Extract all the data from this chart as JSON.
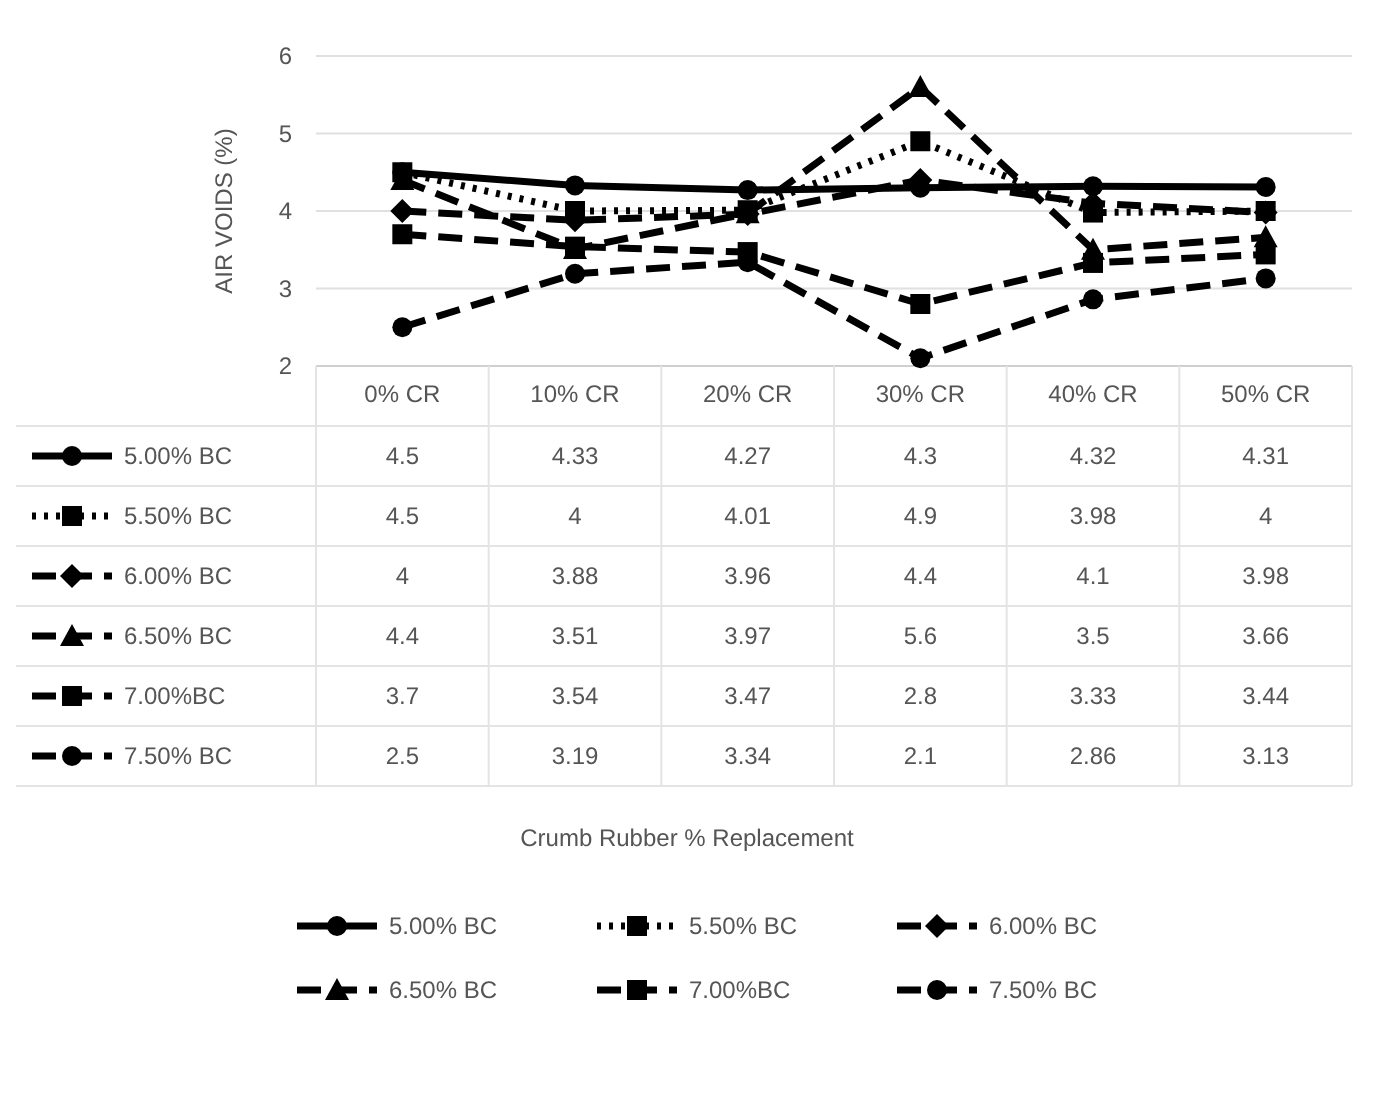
{
  "chart_data": {
    "type": "line",
    "ylabel": "AIR VOIDS (%)",
    "annotations": [
      "Crumb Rubber % Replacement"
    ],
    "categories": [
      "0% CR",
      "10% CR",
      "20% CR",
      "30% CR",
      "40% CR",
      "50% CR"
    ],
    "ylim": [
      2,
      6
    ],
    "yticks": [
      2,
      3,
      4,
      5,
      6
    ],
    "grid": "y",
    "legend": "bottom",
    "data_labels": true,
    "series": [
      {
        "name": "5.00% BC",
        "color": "#000000",
        "marker": "circle",
        "line_style": "solid",
        "values": [
          4.5,
          4.33,
          4.27,
          4.3,
          4.32,
          4.31
        ]
      },
      {
        "name": "5.50% BC",
        "color": "#000000",
        "marker": "square",
        "line_style": "dotted",
        "values": [
          4.5,
          4,
          4.01,
          4.9,
          3.98,
          4
        ]
      },
      {
        "name": "6.00% BC",
        "color": "#000000",
        "marker": "diamond",
        "line_style": "dashed",
        "values": [
          4,
          3.88,
          3.96,
          4.4,
          4.1,
          3.98
        ]
      },
      {
        "name": "6.50% BC",
        "color": "#000000",
        "marker": "triangle",
        "line_style": "dashed",
        "values": [
          4.4,
          3.51,
          3.97,
          5.6,
          3.5,
          3.66
        ]
      },
      {
        "name": "7.00%BC",
        "color": "#000000",
        "marker": "square",
        "line_style": "dashed",
        "values": [
          3.7,
          3.54,
          3.47,
          2.8,
          3.33,
          3.44
        ]
      },
      {
        "name": "7.50% BC",
        "color": "#000000",
        "marker": "circle",
        "line_style": "dashed",
        "values": [
          2.5,
          3.19,
          3.34,
          2.1,
          2.86,
          3.13
        ]
      }
    ]
  }
}
